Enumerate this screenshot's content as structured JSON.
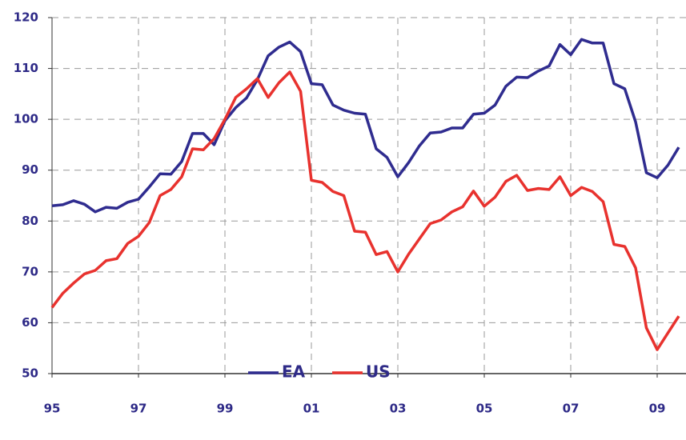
{
  "chart_data": {
    "type": "line",
    "categories": [
      "95",
      null,
      null,
      null,
      null,
      null,
      null,
      null,
      "97",
      null,
      null,
      null,
      null,
      null,
      null,
      null,
      "99",
      null,
      null,
      null,
      null,
      null,
      null,
      null,
      "01",
      null,
      null,
      null,
      null,
      null,
      null,
      null,
      "03",
      null,
      null,
      null,
      null,
      null,
      null,
      null,
      "05",
      null,
      null,
      null,
      null,
      null,
      null,
      null,
      "07",
      null,
      null,
      null,
      null,
      null,
      null,
      null,
      "09",
      null,
      null
    ],
    "series": [
      {
        "name": "EA",
        "color": "#2f2c8f",
        "values": [
          83,
          83.2,
          84,
          83.3,
          81.8,
          82.7,
          82.5,
          83.7,
          84.3,
          86.7,
          89.3,
          89.2,
          91.7,
          97.2,
          97.2,
          95,
          99.7,
          102.3,
          104.2,
          107.8,
          112.5,
          114.2,
          115.2,
          113.3,
          107,
          106.8,
          102.8,
          101.8,
          101.2,
          101,
          94.2,
          92.5,
          88.7,
          91.5,
          94.8,
          97.3,
          97.5,
          98.3,
          98.3,
          101,
          101.2,
          102.8,
          106.5,
          108.3,
          108.2,
          109.5,
          110.5,
          114.7,
          112.7,
          115.7,
          115,
          115,
          107,
          106,
          99.5,
          89.5,
          88.5,
          91,
          94.5
        ]
      },
      {
        "name": "US",
        "color": "#e8322e",
        "values": [
          63,
          65.8,
          67.8,
          69.6,
          70.3,
          72.2,
          72.6,
          75.6,
          77,
          79.7,
          85,
          86.2,
          88.7,
          94.2,
          94,
          96.2,
          100,
          104.3,
          106,
          108,
          104.3,
          107.2,
          109.3,
          105.5,
          88,
          87.6,
          85.8,
          85,
          78,
          77.8,
          73.4,
          74,
          70,
          73.5,
          76.5,
          79.5,
          80.2,
          81.8,
          82.8,
          85.9,
          82.9,
          84.7,
          87.8,
          89,
          86,
          86.4,
          86.2,
          88.7,
          85,
          86.6,
          85.8,
          83.8,
          75.4,
          75,
          70.8,
          59,
          54.7,
          58,
          61.3
        ]
      }
    ],
    "ylim": [
      50,
      120
    ],
    "yticks": [
      50,
      60,
      70,
      80,
      90,
      100,
      110,
      120
    ],
    "grid": true
  }
}
